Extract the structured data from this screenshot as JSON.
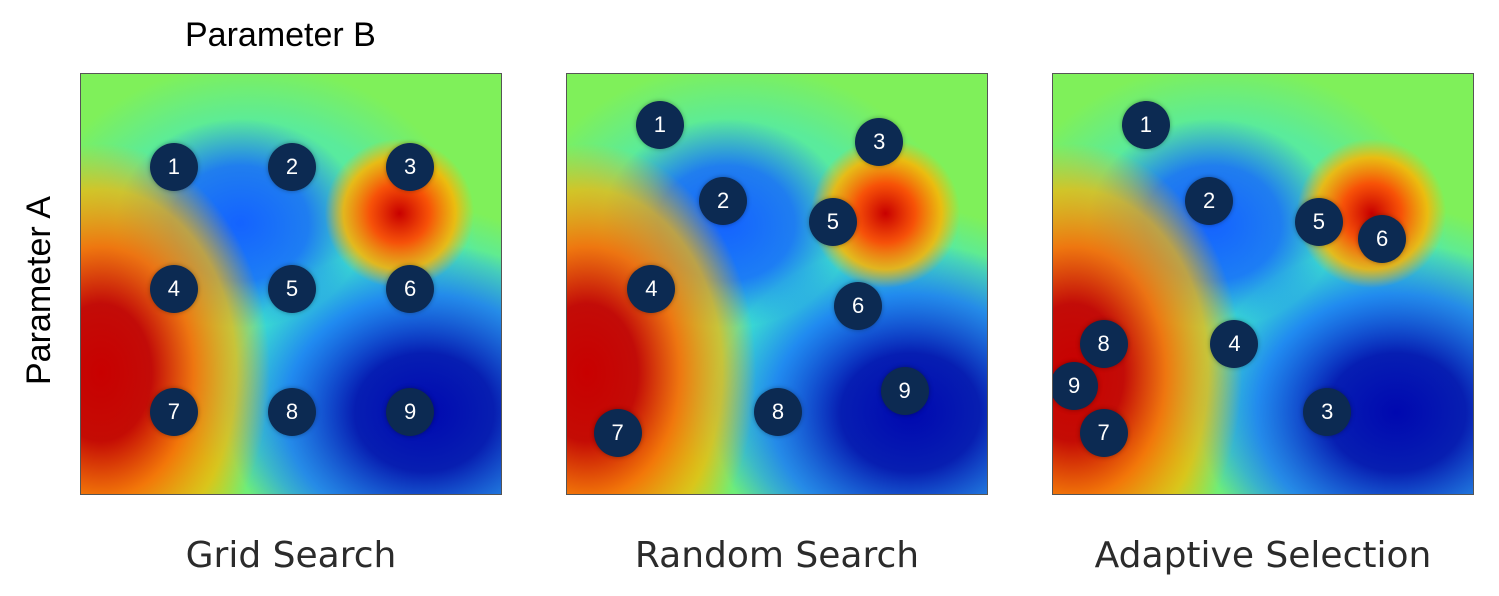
{
  "axis_labels": {
    "horizontal": "Parameter B",
    "vertical": "Parameter A"
  },
  "colors": {
    "background_field": "#7ff05a",
    "high": "#c80000",
    "mid_high": "#ffb400",
    "mid": "#35e6dc",
    "low": "#1463ff",
    "very_low": "#0008b0",
    "marker_fill": "#0c2a52",
    "marker_text": "#ffffff"
  },
  "panels": [
    {
      "caption": "Grid Search",
      "points": [
        {
          "label": "1",
          "a": 0.78,
          "b": 0.22
        },
        {
          "label": "2",
          "a": 0.78,
          "b": 0.5
        },
        {
          "label": "3",
          "a": 0.78,
          "b": 0.78
        },
        {
          "label": "4",
          "a": 0.49,
          "b": 0.22
        },
        {
          "label": "5",
          "a": 0.49,
          "b": 0.5
        },
        {
          "label": "6",
          "a": 0.49,
          "b": 0.78
        },
        {
          "label": "7",
          "a": 0.2,
          "b": 0.22
        },
        {
          "label": "8",
          "a": 0.2,
          "b": 0.5
        },
        {
          "label": "9",
          "a": 0.2,
          "b": 0.78
        }
      ]
    },
    {
      "caption": "Random Search",
      "points": [
        {
          "label": "1",
          "a": 0.88,
          "b": 0.22
        },
        {
          "label": "2",
          "a": 0.7,
          "b": 0.37
        },
        {
          "label": "3",
          "a": 0.84,
          "b": 0.74
        },
        {
          "label": "4",
          "a": 0.49,
          "b": 0.2
        },
        {
          "label": "5",
          "a": 0.65,
          "b": 0.63
        },
        {
          "label": "6",
          "a": 0.45,
          "b": 0.69
        },
        {
          "label": "7",
          "a": 0.15,
          "b": 0.12
        },
        {
          "label": "8",
          "a": 0.2,
          "b": 0.5
        },
        {
          "label": "9",
          "a": 0.25,
          "b": 0.8
        }
      ]
    },
    {
      "caption": "Adaptive Selection",
      "points": [
        {
          "label": "1",
          "a": 0.88,
          "b": 0.22
        },
        {
          "label": "2",
          "a": 0.7,
          "b": 0.37
        },
        {
          "label": "3",
          "a": 0.2,
          "b": 0.65
        },
        {
          "label": "4",
          "a": 0.36,
          "b": 0.43
        },
        {
          "label": "5",
          "a": 0.65,
          "b": 0.63
        },
        {
          "label": "6",
          "a": 0.61,
          "b": 0.78
        },
        {
          "label": "7",
          "a": 0.15,
          "b": 0.12
        },
        {
          "label": "8",
          "a": 0.36,
          "b": 0.12
        },
        {
          "label": "9",
          "a": 0.26,
          "b": 0.05
        }
      ]
    }
  ]
}
